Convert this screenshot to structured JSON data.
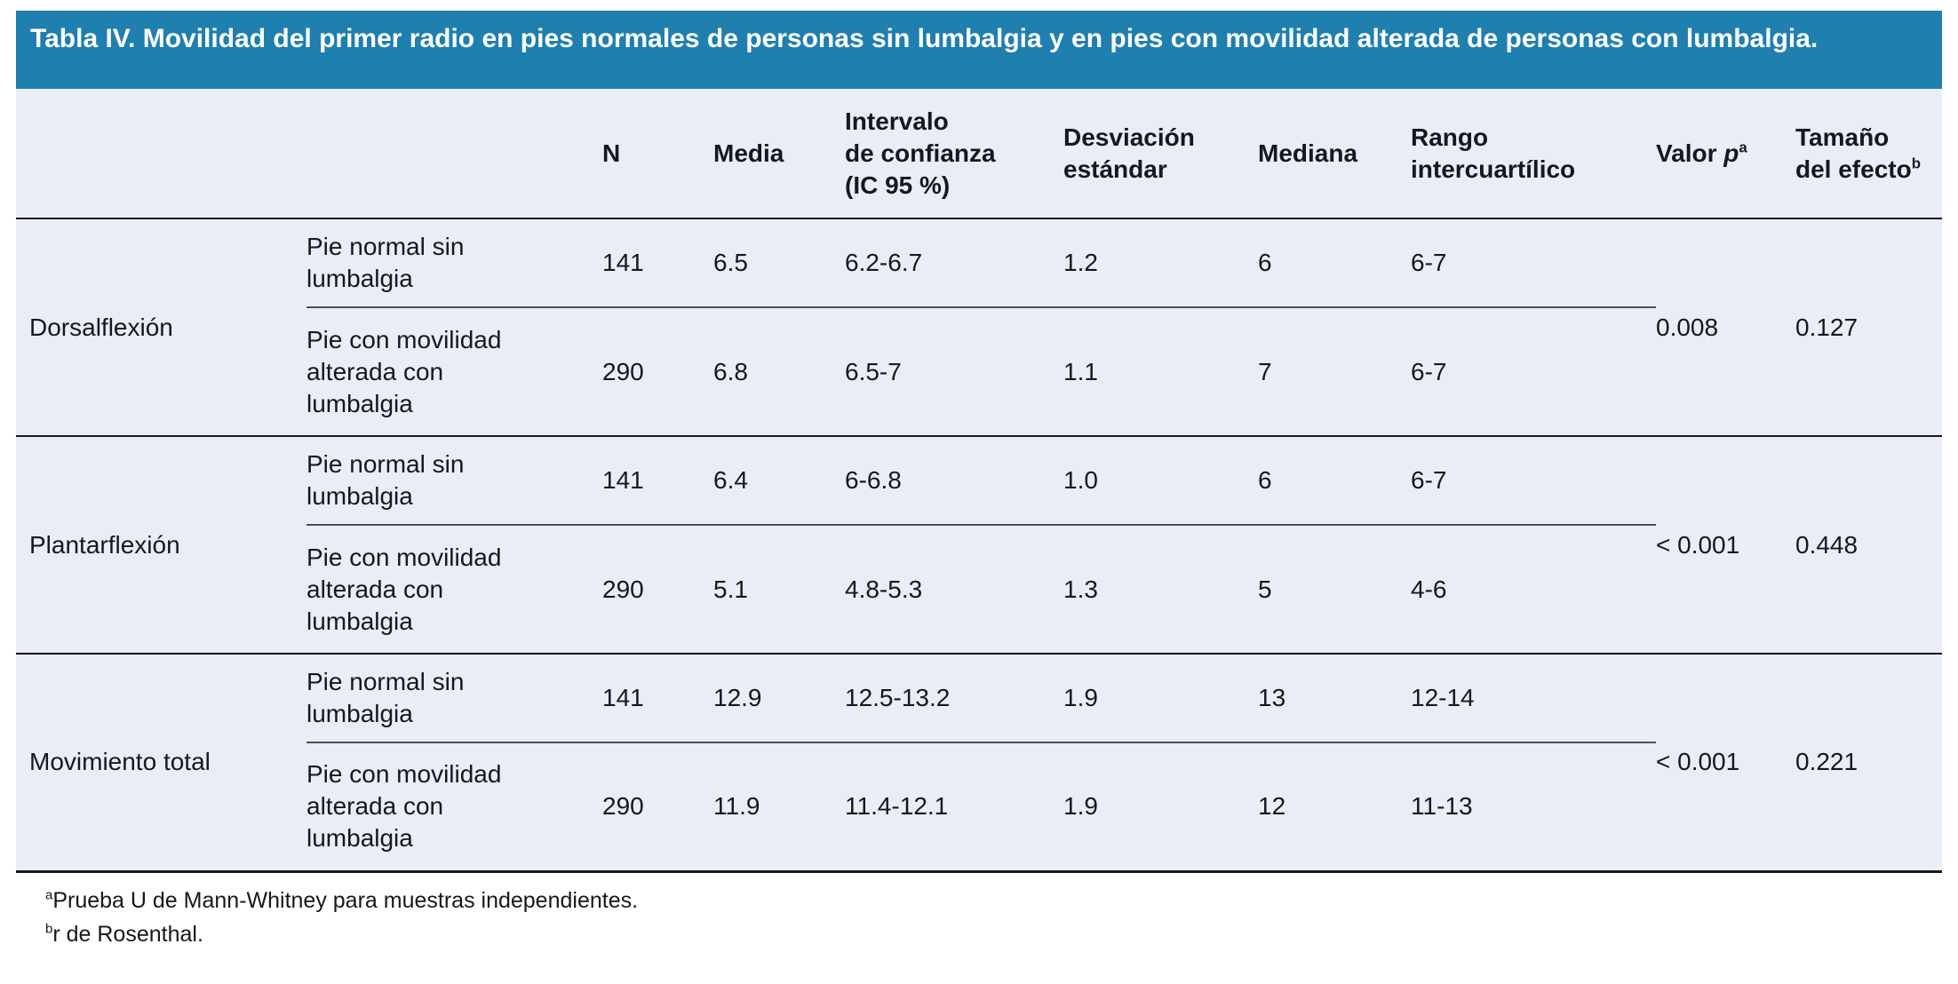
{
  "title": "Tabla IV. Movilidad del primer radio en pies normales de personas sin lumbalgia y en pies con movilidad alterada de personas con lumbalgia.",
  "columns": {
    "n": "N",
    "media": "Media",
    "intervalo_confianza": "Intervalo\nde confianza\n(IC 95 %)",
    "desviacion_estandar": "Desviación\nestándar",
    "mediana": "Mediana",
    "rango_intercuartilico": "Rango\nintercuartílico",
    "valor_p": {
      "prefix": "Valor ",
      "italic": "p",
      "sup": "a"
    },
    "tamano_efecto": {
      "text": "Tamaño\ndel efecto",
      "sup": "b"
    }
  },
  "groups": [
    {
      "label": "Dorsalflexión",
      "valor_p": "0.008",
      "tamano_efecto": "0.127",
      "rows": [
        {
          "label": "Pie normal sin\nlumbalgia",
          "n": "141",
          "media": "6.5",
          "ic": "6.2-6.7",
          "desv": "1.2",
          "mediana": "6",
          "rango": "6-7"
        },
        {
          "label": "Pie con movilidad\nalterada con\nlumbalgia",
          "n": "290",
          "media": "6.8",
          "ic": "6.5-7",
          "desv": "1.1",
          "mediana": "7",
          "rango": "6-7"
        }
      ]
    },
    {
      "label": "Plantarflexión",
      "valor_p": "< 0.001",
      "tamano_efecto": "0.448",
      "rows": [
        {
          "label": "Pie normal sin\nlumbalgia",
          "n": "141",
          "media": "6.4",
          "ic": "6-6.8",
          "desv": "1.0",
          "mediana": "6",
          "rango": "6-7"
        },
        {
          "label": "Pie con movilidad\nalterada con\nlumbalgia",
          "n": "290",
          "media": "5.1",
          "ic": "4.8-5.3",
          "desv": "1.3",
          "mediana": "5",
          "rango": "4-6"
        }
      ]
    },
    {
      "label": "Movimiento total",
      "valor_p": "< 0.001",
      "tamano_efecto": "0.221",
      "rows": [
        {
          "label": "Pie normal sin\nlumbalgia",
          "n": "141",
          "media": "12.9",
          "ic": "12.5-13.2",
          "desv": "1.9",
          "mediana": "13",
          "rango": "12-14"
        },
        {
          "label": "Pie con movilidad\nalterada con\nlumbalgia",
          "n": "290",
          "media": "11.9",
          "ic": "11.4-12.1",
          "desv": "1.9",
          "mediana": "12",
          "rango": "11-13"
        }
      ]
    }
  ],
  "footnotes": [
    {
      "sup": "a",
      "text": "Prueba U de Mann-Whitney para muestras independientes."
    },
    {
      "sup": "b",
      "text": "r de Rosenthal."
    }
  ],
  "colors": {
    "title_band_bg": "#1f7fae",
    "title_text": "#ffffff",
    "body_bg": "#e9edf6",
    "rule_dark": "#15181d",
    "rule_thin": "#4b4f55"
  }
}
